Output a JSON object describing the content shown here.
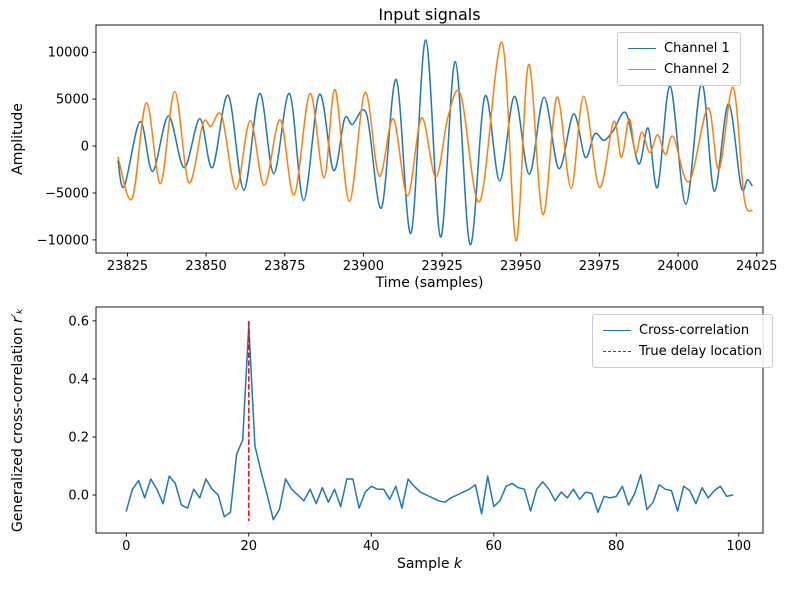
{
  "figure_title": "Input signals",
  "colors": {
    "channel1": "#1f77b4",
    "channel2": "#ff7f0e",
    "true_delay": "#ff0000",
    "spine": "#000000"
  },
  "chart_data": [
    {
      "type": "line",
      "title": "Input signals",
      "xlabel": "Time (samples)",
      "ylabel": "Amplitude",
      "xlim": [
        23815,
        24027
      ],
      "ylim": [
        -11400,
        12900
      ],
      "xticks": [
        23825,
        23850,
        23875,
        23900,
        23925,
        23950,
        23975,
        24000,
        24025
      ],
      "yticks": [
        -10000,
        -5000,
        0,
        5000,
        10000
      ],
      "grid": false,
      "smooth": true,
      "legend_position": "upper right",
      "series": [
        {
          "name": "Channel 1",
          "color": "#1f77b4",
          "x": [
            23822,
            23824,
            23829,
            23833,
            23838,
            23843,
            23848,
            23852,
            23857,
            23862,
            23867,
            23871.5,
            23876.5,
            23881,
            23886,
            23890.5,
            23894,
            23896.5,
            23901,
            23905.7,
            23910.4,
            23915.1,
            23919.8,
            23924.5,
            23929.2,
            23933.9,
            23938.6,
            23943.3,
            23948,
            23952.7,
            23957.4,
            23962.1,
            23966.8,
            23970.5,
            23973.5,
            23976.5,
            23979.5,
            23983.5,
            23987.5,
            23990.5,
            23993.5,
            23997.5,
            24002.5,
            24007.5,
            24011.5,
            24016,
            24020,
            24022,
            24023.5
          ],
          "y": [
            -1600,
            -4300,
            2600,
            -2700,
            3200,
            -2300,
            2900,
            -2300,
            5400,
            -4700,
            5600,
            -2950,
            5600,
            -5800,
            5500,
            -2600,
            2900,
            2300,
            3400,
            -6600,
            7100,
            -9300,
            11300,
            -9700,
            9000,
            -10500,
            5300,
            -3700,
            5300,
            -3000,
            5200,
            -2400,
            3400,
            -1200,
            1300,
            600,
            1700,
            3500,
            -1900,
            1900,
            -4400,
            6400,
            -6200,
            6700,
            -4800,
            4500,
            -4300,
            -3600,
            -4200
          ]
        },
        {
          "name": "Channel 2",
          "color": "#ff7f0e",
          "x": [
            23822,
            23826.5,
            23831,
            23835.5,
            23840,
            23844.5,
            23849,
            23851.5,
            23855,
            23859.5,
            23864,
            23868.5,
            23873.5,
            23878,
            23883,
            23887.5,
            23891,
            23895.5,
            23900.5,
            23905,
            23909.5,
            23914,
            23918.5,
            23923,
            23927,
            23931,
            23937,
            23944,
            23948.5,
            23952.5,
            23957,
            23961.5,
            23966,
            23970,
            23975,
            23979.5,
            23982,
            23984.5,
            23986.5,
            23988.5,
            23991,
            23993.5,
            23996,
            23998.5,
            24003.5,
            24009.5,
            24013,
            24017.5,
            24021,
            24023.5
          ],
          "y": [
            -1200,
            -5600,
            4600,
            -4000,
            5800,
            -3900,
            2400,
            2100,
            3200,
            -4600,
            2700,
            -4200,
            2800,
            -5200,
            5600,
            -3400,
            6000,
            -5900,
            5700,
            -3200,
            2900,
            -5300,
            3000,
            -3300,
            3300,
            5400,
            -5900,
            11050,
            -10100,
            8700,
            -7300,
            5200,
            -4500,
            5300,
            -4400,
            2600,
            -1200,
            2900,
            -800,
            1500,
            -700,
            1200,
            -900,
            1000,
            -3800,
            4050,
            -2500,
            6250,
            -5500,
            -6900
          ]
        }
      ]
    },
    {
      "type": "line",
      "title": "",
      "xlabel_text": "Sample ",
      "xlabel_math": "k",
      "ylabel_text": "Generalized cross-correlation ",
      "ylabel_math": "r′ₖ",
      "xlim": [
        -4.95,
        103.95
      ],
      "ylim": [
        -0.131,
        0.648
      ],
      "xticks": [
        0,
        20,
        40,
        60,
        80,
        100
      ],
      "yticks": [
        0.0,
        0.2,
        0.4,
        0.6
      ],
      "ytick_decimals": 1,
      "grid": false,
      "smooth": false,
      "legend_position": "upper right",
      "series": [
        {
          "name": "Cross-correlation",
          "color": "#1f77b4",
          "x_start": 0,
          "x_step": 1,
          "y": [
            -0.055,
            0.02,
            0.05,
            -0.01,
            0.055,
            0.02,
            -0.03,
            0.065,
            0.04,
            -0.035,
            -0.045,
            0.02,
            -0.01,
            0.055,
            0.02,
            0.0,
            -0.075,
            -0.06,
            0.14,
            0.19,
            0.585,
            0.17,
            0.08,
            0.0,
            -0.085,
            -0.05,
            0.055,
            0.02,
            0.0,
            -0.02,
            0.02,
            -0.03,
            0.025,
            -0.025,
            0.02,
            -0.04,
            0.055,
            0.055,
            -0.045,
            0.01,
            0.03,
            0.02,
            0.02,
            -0.015,
            0.03,
            -0.045,
            0.055,
            0.03,
            0.01,
            0.0,
            -0.01,
            -0.02,
            -0.025,
            -0.01,
            0.0,
            0.01,
            0.02,
            0.035,
            -0.065,
            0.065,
            -0.04,
            -0.02,
            0.03,
            0.04,
            0.025,
            0.02,
            -0.055,
            0.02,
            0.045,
            0.02,
            -0.02,
            0.01,
            -0.01,
            0.02,
            -0.015,
            0.01,
            0.005,
            -0.06,
            -0.005,
            -0.01,
            -0.005,
            0.03,
            -0.035,
            0.005,
            0.07,
            -0.05,
            -0.025,
            0.035,
            0.02,
            0.015,
            -0.055,
            0.03,
            0.015,
            -0.03,
            0.025,
            -0.01,
            0.015,
            0.03,
            -0.005,
            0.0
          ]
        }
      ],
      "vline": {
        "name": "True delay location",
        "x": 20,
        "y0": -0.09,
        "y1": 0.6,
        "color": "#ff0000",
        "style": "dashed"
      }
    }
  ]
}
